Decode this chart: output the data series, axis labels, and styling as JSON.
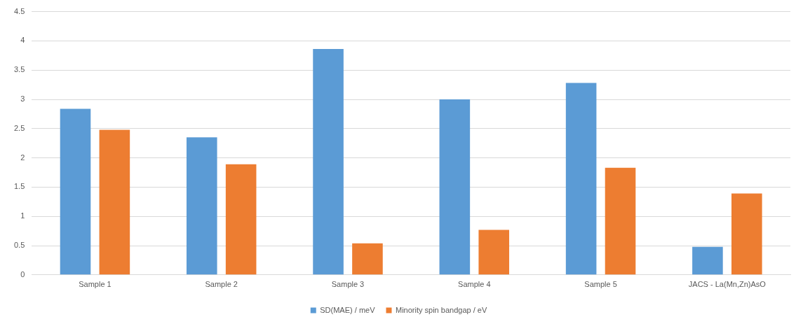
{
  "chart_data": {
    "type": "bar",
    "categories": [
      "Sample 1",
      "Sample 2",
      "Sample 3",
      "Sample 4",
      "Sample 5",
      "JACS - La(Mn,Zn)AsO"
    ],
    "series": [
      {
        "name": "SD(MAE) / meV",
        "color": "#5b9bd5",
        "values": [
          2.84,
          2.35,
          3.86,
          3.0,
          3.28,
          0.48
        ]
      },
      {
        "name": "Minority spin bandgap / eV",
        "color": "#ed7d31",
        "values": [
          2.48,
          1.89,
          0.54,
          0.77,
          1.83,
          1.39
        ]
      }
    ],
    "ylim": [
      0,
      4.5
    ],
    "yticks": [
      0,
      0.5,
      1,
      1.5,
      2,
      2.5,
      3,
      3.5,
      4,
      4.5
    ],
    "grid": "y",
    "legend": "bottom"
  }
}
